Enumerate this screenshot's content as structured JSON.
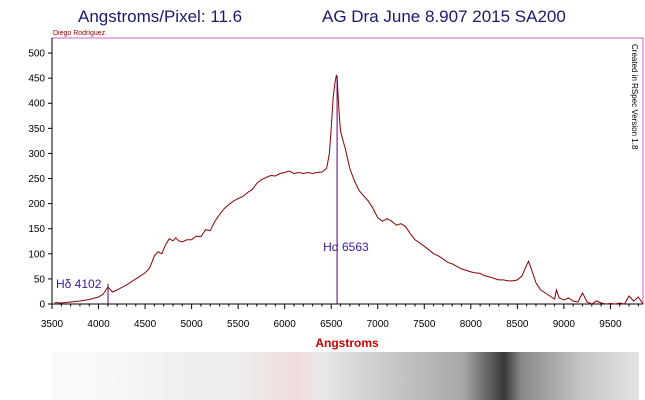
{
  "header": {
    "title_left": "Angstroms/Pixel: 11.6",
    "title_right": "AG Dra   June  8.907   2015  SA200",
    "observer": "Diego Rodriguez",
    "software": "Created in RSpec Version 1.8"
  },
  "colors": {
    "spectrum": "#8b0000",
    "lines": "#5a0070",
    "frame": "#cc66cc",
    "axis_label": "#cc0000",
    "line_labels": "#3a1aa0"
  },
  "chart_data": {
    "type": "line",
    "title": "AG Dra   June  8.907   2015  SA200",
    "xlabel": "Angstroms",
    "ylabel": "",
    "xlim": [
      3500,
      9850
    ],
    "ylim": [
      0,
      530
    ],
    "x_ticks": [
      3500,
      4000,
      4500,
      5000,
      5500,
      6000,
      6500,
      7000,
      7500,
      8000,
      8500,
      9000,
      9500
    ],
    "y_ticks": [
      0,
      50,
      100,
      150,
      200,
      250,
      300,
      350,
      400,
      450,
      500
    ],
    "grid": false,
    "series": [
      {
        "x": [
          3530,
          3600,
          3700,
          3800,
          3900,
          4000,
          4050,
          4102,
          4150,
          4200,
          4300,
          4400,
          4500,
          4550,
          4600,
          4640,
          4680,
          4720,
          4760,
          4800,
          4830,
          4860,
          4900,
          4950,
          5000,
          5050,
          5100,
          5150,
          5200,
          5250,
          5300,
          5350,
          5400,
          5450,
          5500,
          5550,
          5600,
          5650,
          5700,
          5750,
          5800,
          5850,
          5900,
          5950,
          6000,
          6050,
          6100,
          6150,
          6200,
          6250,
          6300,
          6350,
          6400,
          6450,
          6480,
          6500,
          6520,
          6540,
          6555,
          6563,
          6570,
          6585,
          6600,
          6620,
          6650,
          6700,
          6750,
          6800,
          6850,
          6900,
          6950,
          7000,
          7050,
          7100,
          7150,
          7200,
          7250,
          7300,
          7350,
          7400,
          7450,
          7500,
          7550,
          7600,
          7650,
          7700,
          7750,
          7800,
          7850,
          7900,
          7950,
          8000,
          8050,
          8100,
          8150,
          8200,
          8250,
          8300,
          8350,
          8400,
          8450,
          8500,
          8550,
          8600,
          8620,
          8650,
          8700,
          8750,
          8800,
          8850,
          8900,
          8920,
          8950,
          9000,
          9050,
          9100,
          9150,
          9200,
          9250,
          9300,
          9350,
          9400,
          9450,
          9500,
          9550,
          9600,
          9650,
          9700,
          9750,
          9800,
          9850
        ],
        "y": [
          3,
          2,
          4,
          6,
          9,
          14,
          20,
          34,
          24,
          28,
          38,
          50,
          62,
          72,
          96,
          104,
          100,
          118,
          130,
          126,
          132,
          126,
          124,
          128,
          128,
          135,
          134,
          148,
          146,
          165,
          178,
          190,
          198,
          205,
          210,
          214,
          222,
          228,
          240,
          248,
          252,
          256,
          255,
          260,
          262,
          265,
          260,
          262,
          260,
          262,
          260,
          262,
          263,
          270,
          300,
          350,
          410,
          440,
          455,
          452,
          430,
          380,
          345,
          330,
          310,
          270,
          245,
          226,
          215,
          205,
          190,
          172,
          165,
          170,
          165,
          157,
          160,
          154,
          140,
          128,
          122,
          115,
          108,
          100,
          96,
          90,
          83,
          80,
          75,
          70,
          67,
          64,
          62,
          61,
          56,
          54,
          51,
          48,
          48,
          46,
          46,
          48,
          56,
          78,
          85,
          70,
          42,
          28,
          22,
          16,
          10,
          28,
          12,
          8,
          12,
          6,
          4,
          22,
          4,
          0,
          6,
          2,
          0,
          1,
          0,
          2,
          0,
          16,
          6,
          14,
          0
        ]
      }
    ],
    "lines": [
      {
        "label": "Hδ 4102",
        "x": 4102,
        "height": 40
      },
      {
        "label": "Hα 6563",
        "x": 6563,
        "height": 455
      }
    ]
  }
}
